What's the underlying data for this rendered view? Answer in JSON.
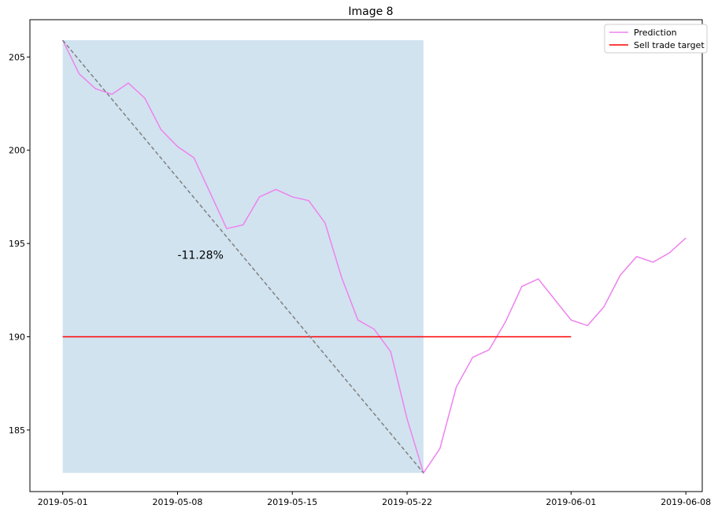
{
  "chart_data": {
    "type": "line",
    "title": "Image 8",
    "xlabel": "",
    "ylabel": "",
    "x_tick_labels": [
      "2019-05-01",
      "2019-05-08",
      "2019-05-15",
      "2019-05-22",
      "2019-06-01",
      "2019-06-08"
    ],
    "y_tick_labels": [
      "185",
      "190",
      "195",
      "200",
      "205"
    ],
    "xlim": [
      "2019-04-29",
      "2019-06-09"
    ],
    "ylim": [
      181.7,
      207.0
    ],
    "grid": false,
    "legend_position": "top-right",
    "series": [
      {
        "name": "Prediction",
        "color": "#ee82ee",
        "points": [
          [
            "2019-05-01",
            205.9
          ],
          [
            "2019-05-02",
            204.1
          ],
          [
            "2019-05-03",
            203.3
          ],
          [
            "2019-05-04",
            203.0
          ],
          [
            "2019-05-05",
            203.6
          ],
          [
            "2019-05-06",
            202.8
          ],
          [
            "2019-05-07",
            201.1
          ],
          [
            "2019-05-08",
            200.2
          ],
          [
            "2019-05-09",
            199.6
          ],
          [
            "2019-05-10",
            197.7
          ],
          [
            "2019-05-11",
            195.8
          ],
          [
            "2019-05-12",
            196.0
          ],
          [
            "2019-05-13",
            197.5
          ],
          [
            "2019-05-14",
            197.9
          ],
          [
            "2019-05-15",
            197.5
          ],
          [
            "2019-05-16",
            197.3
          ],
          [
            "2019-05-17",
            196.1
          ],
          [
            "2019-05-18",
            193.2
          ],
          [
            "2019-05-19",
            190.9
          ],
          [
            "2019-05-20",
            190.4
          ],
          [
            "2019-05-21",
            189.2
          ],
          [
            "2019-05-22",
            185.6
          ],
          [
            "2019-05-23",
            182.7
          ],
          [
            "2019-05-24",
            184.0
          ],
          [
            "2019-05-25",
            187.3
          ],
          [
            "2019-05-26",
            188.9
          ],
          [
            "2019-05-27",
            189.3
          ],
          [
            "2019-05-28",
            190.8
          ],
          [
            "2019-05-29",
            192.7
          ],
          [
            "2019-05-30",
            193.1
          ],
          [
            "2019-05-31",
            192.0
          ],
          [
            "2019-06-01",
            190.9
          ],
          [
            "2019-06-02",
            190.6
          ],
          [
            "2019-06-03",
            191.6
          ],
          [
            "2019-06-04",
            193.3
          ],
          [
            "2019-06-05",
            194.3
          ],
          [
            "2019-06-06",
            194.0
          ],
          [
            "2019-06-07",
            194.5
          ],
          [
            "2019-06-08",
            195.3
          ]
        ]
      },
      {
        "name": "Sell trade target",
        "color": "#ff0000",
        "points": [
          [
            "2019-05-01",
            190.0
          ],
          [
            "2019-06-01",
            190.0
          ]
        ]
      }
    ],
    "trend_line": {
      "color": "#808080",
      "style": "dashed",
      "points": [
        [
          "2019-05-01",
          205.9
        ],
        [
          "2019-05-23",
          182.7
        ]
      ]
    },
    "shaded_region": {
      "color": "#d1e3ef",
      "x": [
        "2019-05-01",
        "2019-05-23"
      ],
      "y": [
        182.7,
        205.9
      ]
    },
    "annotations": [
      {
        "text": "-11.28%",
        "x": "2019-05-08",
        "y": 194.4
      }
    ]
  }
}
